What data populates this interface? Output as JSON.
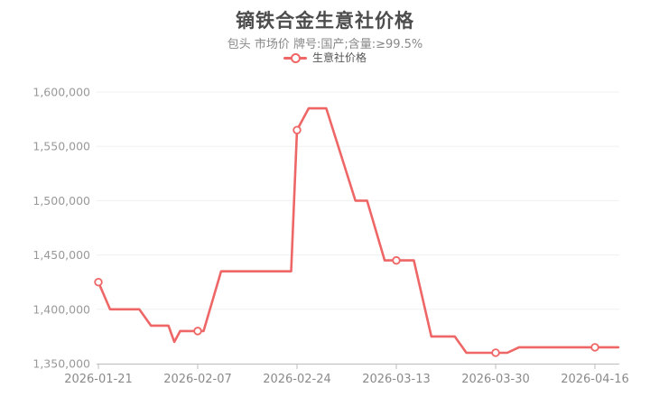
{
  "header": {
    "title": "镝铁合金生意社价格",
    "subtitle": "包头 市场价 牌号:国产;含量:≥99.5%",
    "legend_label": "生意社价格"
  },
  "colors": {
    "line": "#ee6666",
    "marker_fill": "#ffffff",
    "grid_line": "#f0f0f0",
    "axis_line": "#bcbcbc",
    "title_text": "#4d4d4d",
    "subtitle_text": "#888888",
    "axis_tick_text": "#999999",
    "x_label_text": "#8a8a8a",
    "legend_text": "#555555",
    "background": "#ffffff"
  },
  "chart_data": {
    "type": "line",
    "title": "镝铁合金生意社价格",
    "subtitle": "包头 市场价 牌号:国产;含量:≥99.5%",
    "legend": [
      "生意社价格"
    ],
    "legend_position": "top",
    "grid": true,
    "ylim": [
      1350000,
      1600000
    ],
    "y_tick_step": 50000,
    "y_ticks": [
      {
        "value": 1350000,
        "label": "1,350,000"
      },
      {
        "value": 1400000,
        "label": "1,400,000"
      },
      {
        "value": 1450000,
        "label": "1,450,000"
      },
      {
        "value": 1500000,
        "label": "1,500,000"
      },
      {
        "value": 1550000,
        "label": "1,550,000"
      },
      {
        "value": 1600000,
        "label": "1,600,000"
      }
    ],
    "x_ticks": [
      "2026-01-21",
      "2026-02-07",
      "2026-02-24",
      "2026-03-13",
      "2026-03-30",
      "2026-04-16"
    ],
    "x_range": [
      "2026-01-21",
      "2026-04-20"
    ],
    "series": [
      {
        "name": "生意社价格",
        "points": [
          {
            "date": "2026-01-21",
            "value": 1425000
          },
          {
            "date": "2026-01-23",
            "value": 1400000
          },
          {
            "date": "2026-01-28",
            "value": 1400000
          },
          {
            "date": "2026-01-30",
            "value": 1385000
          },
          {
            "date": "2026-02-02",
            "value": 1385000
          },
          {
            "date": "2026-02-03",
            "value": 1370000
          },
          {
            "date": "2026-02-04",
            "value": 1380000
          },
          {
            "date": "2026-02-08",
            "value": 1380000
          },
          {
            "date": "2026-02-11",
            "value": 1435000
          },
          {
            "date": "2026-02-23",
            "value": 1435000
          },
          {
            "date": "2026-02-24",
            "value": 1565000
          },
          {
            "date": "2026-02-26",
            "value": 1585000
          },
          {
            "date": "2026-03-01",
            "value": 1585000
          },
          {
            "date": "2026-03-06",
            "value": 1500000
          },
          {
            "date": "2026-03-08",
            "value": 1500000
          },
          {
            "date": "2026-03-11",
            "value": 1445000
          },
          {
            "date": "2026-03-16",
            "value": 1445000
          },
          {
            "date": "2026-03-19",
            "value": 1375000
          },
          {
            "date": "2026-03-23",
            "value": 1375000
          },
          {
            "date": "2026-03-25",
            "value": 1360000
          },
          {
            "date": "2026-04-01",
            "value": 1360000
          },
          {
            "date": "2026-04-03",
            "value": 1365000
          },
          {
            "date": "2026-04-20",
            "value": 1365000
          }
        ],
        "markers": [
          {
            "date": "2026-01-21",
            "value": 1425000
          },
          {
            "date": "2026-02-07",
            "value": 1380000
          },
          {
            "date": "2026-02-24",
            "value": 1565000
          },
          {
            "date": "2026-03-13",
            "value": 1445000
          },
          {
            "date": "2026-03-30",
            "value": 1360000
          },
          {
            "date": "2026-04-16",
            "value": 1365000
          }
        ]
      }
    ]
  }
}
